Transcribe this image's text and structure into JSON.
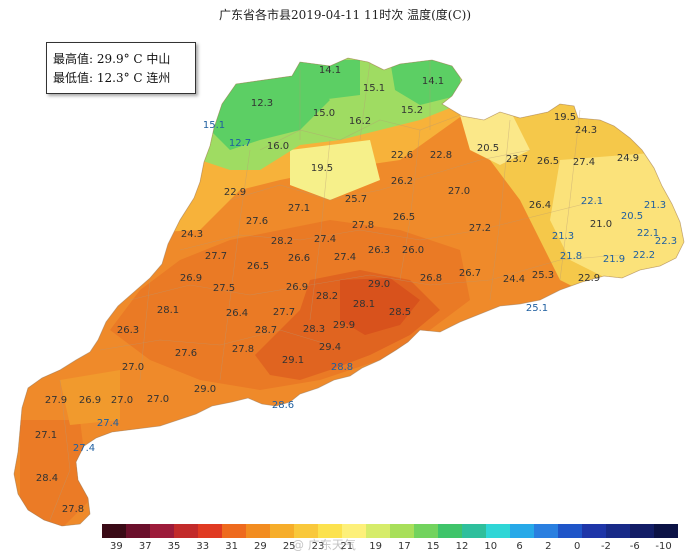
{
  "title": "广东省各市县2019-04-11 11时次 温度(度(C))",
  "legend": {
    "max_label": "最高值:",
    "max_value": "29.9° C",
    "max_place": "中山",
    "min_label": "最低值:",
    "min_value": "12.3° C",
    "min_place": "连州"
  },
  "stations": [
    {
      "v": "14.1"
    },
    {
      "v": "15.1"
    },
    {
      "v": "14.1"
    },
    {
      "v": "12.3"
    },
    {
      "v": "15.0"
    },
    {
      "v": "16.2"
    },
    {
      "v": "15.2"
    },
    {
      "v": "15.1"
    },
    {
      "v": "12.7"
    },
    {
      "v": "16.0"
    },
    {
      "v": "19.5"
    },
    {
      "v": "24.3"
    },
    {
      "v": "24.9"
    },
    {
      "v": "20.5"
    },
    {
      "v": "22.6"
    },
    {
      "v": "22.8"
    },
    {
      "v": "23.7"
    },
    {
      "v": "26.5"
    },
    {
      "v": "27.4"
    },
    {
      "v": "19.5"
    },
    {
      "v": "22.9"
    },
    {
      "v": "26.2"
    },
    {
      "v": "27.0"
    },
    {
      "v": "26.4"
    },
    {
      "v": "22.1"
    },
    {
      "v": "21.3"
    },
    {
      "v": "20.5"
    },
    {
      "v": "24.3"
    },
    {
      "v": "27.1"
    },
    {
      "v": "25.7"
    },
    {
      "v": "27.6"
    },
    {
      "v": "27.8"
    },
    {
      "v": "26.5"
    },
    {
      "v": "27.2"
    },
    {
      "v": "21.0"
    },
    {
      "v": "22.1"
    },
    {
      "v": "22.3"
    },
    {
      "v": "21.3"
    },
    {
      "v": "28.2"
    },
    {
      "v": "27.4"
    },
    {
      "v": "27.7"
    },
    {
      "v": "26.6"
    },
    {
      "v": "26.3"
    },
    {
      "v": "26.0"
    },
    {
      "v": "21.8"
    },
    {
      "v": "21.9"
    },
    {
      "v": "22.2"
    },
    {
      "v": "26.5"
    },
    {
      "v": "27.4"
    },
    {
      "v": "26.7"
    },
    {
      "v": "26.9"
    },
    {
      "v": "26.8"
    },
    {
      "v": "25.3"
    },
    {
      "v": "24.4"
    },
    {
      "v": "22.9"
    },
    {
      "v": "27.5"
    },
    {
      "v": "26.9"
    },
    {
      "v": "29.0"
    },
    {
      "v": "28.1"
    },
    {
      "v": "28.2"
    },
    {
      "v": "28.1"
    },
    {
      "v": "26.4"
    },
    {
      "v": "27.7"
    },
    {
      "v": "28.5"
    },
    {
      "v": "25.1"
    },
    {
      "v": "26.3"
    },
    {
      "v": "28.7"
    },
    {
      "v": "28.3"
    },
    {
      "v": "29.9"
    },
    {
      "v": "27.6"
    },
    {
      "v": "27.8"
    },
    {
      "v": "29.4"
    },
    {
      "v": "29.1"
    },
    {
      "v": "28.8"
    },
    {
      "v": "27.0"
    },
    {
      "v": "29.0"
    },
    {
      "v": "27.9"
    },
    {
      "v": "26.9"
    },
    {
      "v": "27.0"
    },
    {
      "v": "27.0"
    },
    {
      "v": "28.6"
    },
    {
      "v": "27.4"
    },
    {
      "v": "27.1"
    },
    {
      "v": "27.4"
    },
    {
      "v": "28.4"
    },
    {
      "v": "27.8"
    }
  ],
  "colorbar": {
    "colors": [
      "#3a0a16",
      "#6b0f2b",
      "#9c1b3a",
      "#c22a2a",
      "#e03a22",
      "#ee6a1e",
      "#f28c20",
      "#f6ad2a",
      "#f9c83b",
      "#fce24e",
      "#fdf07a",
      "#d6ec6a",
      "#a8df5a",
      "#72d35e",
      "#3fc46a",
      "#2ebf9c",
      "#2fd6d6",
      "#27a9e8",
      "#2a7fe0",
      "#1f55c8",
      "#1e35a8",
      "#182a88",
      "#121d66",
      "#0b1245"
    ],
    "ticks": [
      "39",
      "37",
      "35",
      "33",
      "31",
      "29",
      "25",
      "23",
      "21",
      "19",
      "17",
      "15",
      "12",
      "10",
      "6",
      "2",
      "0",
      "-2",
      "-6",
      "-10"
    ]
  },
  "watermark": "@ 广东天气"
}
